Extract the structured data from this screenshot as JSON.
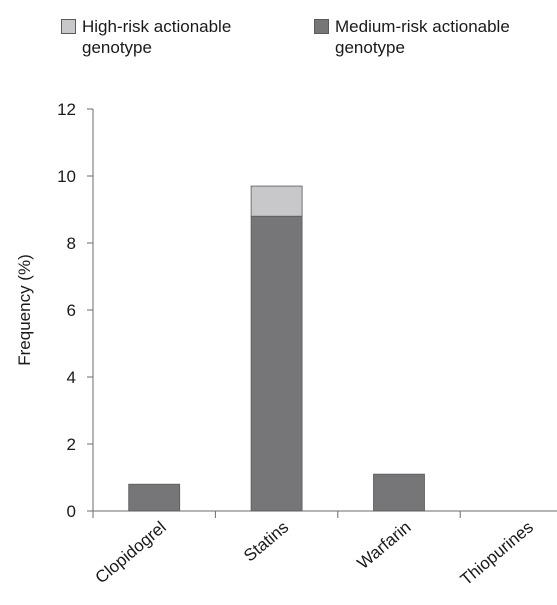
{
  "chart_data": {
    "type": "bar",
    "stacked": true,
    "categories": [
      "Clopidogrel",
      "Statins",
      "Warfarin",
      "Thiopurines"
    ],
    "series": [
      {
        "name": "Medium-risk actionable genotype",
        "values": [
          0.8,
          8.8,
          1.1,
          0
        ],
        "color": "#767678"
      },
      {
        "name": "High-risk actionable genotype",
        "values": [
          0,
          0.9,
          0,
          0
        ],
        "color": "#c8c8ca"
      }
    ],
    "ylabel": "Frequency (%)",
    "xlabel": "",
    "ylim": [
      0,
      12
    ],
    "yticks": [
      0,
      2,
      4,
      6,
      8,
      10,
      12
    ],
    "grid": false,
    "legend_position": "top"
  },
  "legend": {
    "high_risk": "High-risk actionable\ngenotype",
    "medium_risk": "Medium-risk actionable\ngenotype"
  }
}
